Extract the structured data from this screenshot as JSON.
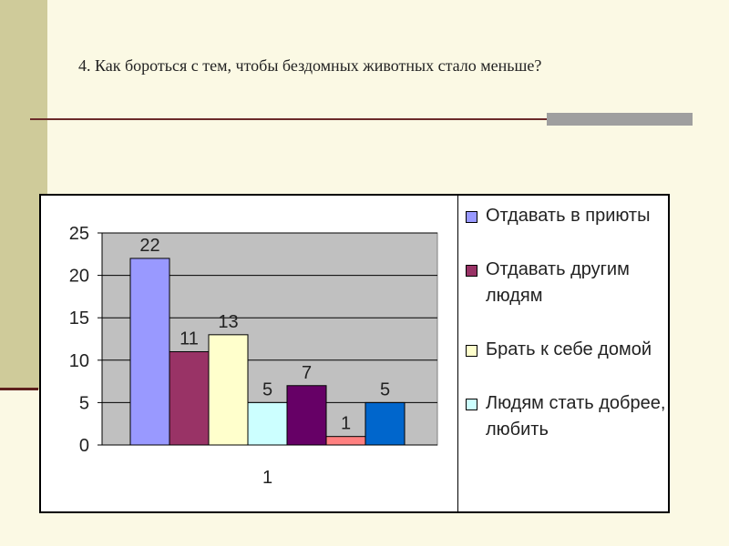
{
  "slide": {
    "title": "4. Как бороться с тем, чтобы бездомных животных стало меньше?"
  },
  "colors": {
    "background": "#fbf9e4",
    "side_band": "#cfcb9a",
    "plot_area": "#c0c0c0"
  },
  "chart_data": {
    "type": "bar",
    "categories": [
      "1"
    ],
    "ylim": [
      0,
      25
    ],
    "yticks": [
      0,
      5,
      10,
      15,
      20,
      25
    ],
    "grid": true,
    "legend_position": "right",
    "series": [
      {
        "name": "Отдавать в приюты",
        "values": [
          22
        ],
        "color": "#9999ff"
      },
      {
        "name": "Отдавать другим людям",
        "values": [
          11
        ],
        "color": "#993366"
      },
      {
        "name": "Брать к себе домой",
        "values": [
          13
        ],
        "color": "#ffffcc"
      },
      {
        "name": "Людям стать добрее, любить",
        "values": [
          5
        ],
        "color": "#ccffff"
      },
      {
        "name": "",
        "values": [
          7
        ],
        "color": "#660066"
      },
      {
        "name": "",
        "values": [
          1
        ],
        "color": "#ff8080"
      },
      {
        "name": "",
        "values": [
          5
        ],
        "color": "#0066cc"
      }
    ]
  }
}
